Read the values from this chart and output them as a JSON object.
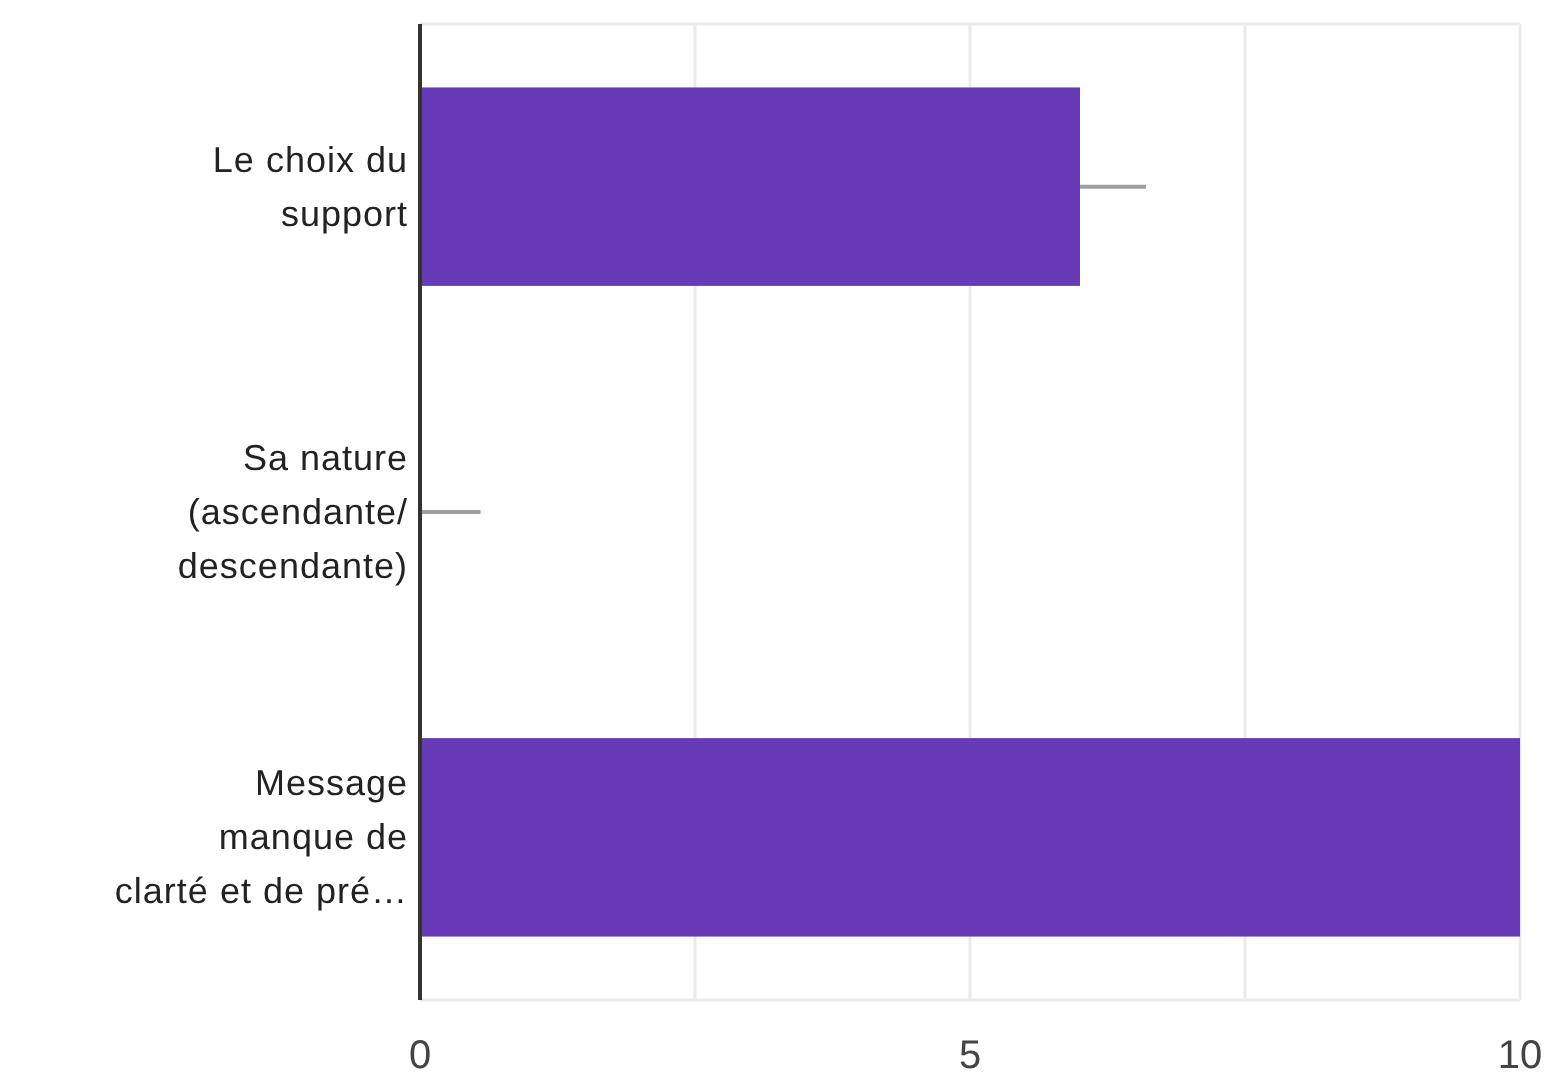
{
  "chart_data": {
    "type": "bar",
    "orientation": "horizontal",
    "categories": [
      "Le choix du support",
      "Sa nature (ascendante/descendante)",
      "Message manque de clarté et de pré…"
    ],
    "values": [
      6,
      0,
      10
    ],
    "color": "#673ab7",
    "errors": [
      [
        6,
        6.6
      ],
      [
        0,
        0.55
      ],
      null
    ],
    "xlim": [
      0,
      10
    ],
    "xticks": [
      0,
      {
        "value": 2.5,
        "label": null
      },
      5,
      {
        "value": 7.5,
        "label": null
      },
      10
    ],
    "grid": "x"
  }
}
